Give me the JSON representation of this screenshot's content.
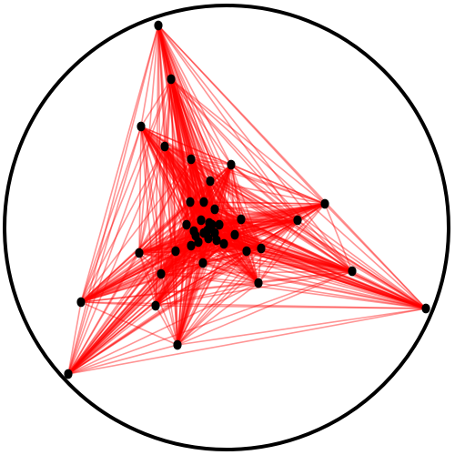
{
  "graph": {
    "kind": "hyperbolic-disk-graph",
    "colors": {
      "edge": "#ff0000",
      "node": "#000000",
      "boundary": "#000000",
      "background": "#ffffff"
    },
    "node_count": 50,
    "hub_count": 20
  }
}
